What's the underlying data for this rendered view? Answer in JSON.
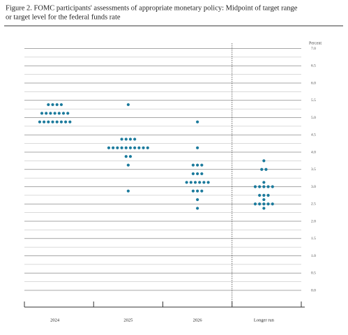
{
  "chart_data": {
    "type": "dot",
    "title": [
      "Figure 2. FOMC participants' assessments of appropriate monetary policy: Midpoint of target range",
      "or target level for the federal funds rate"
    ],
    "y_unit_label": "Percent",
    "categories": [
      "2024",
      "2025",
      "2026",
      "Longer run"
    ],
    "values": [
      [
        5.375,
        5.375,
        5.375,
        5.375,
        5.125,
        5.125,
        5.125,
        5.125,
        5.125,
        5.125,
        5.125,
        4.875,
        4.875,
        4.875,
        4.875,
        4.875,
        4.875,
        4.875,
        4.875
      ],
      [
        5.375,
        4.375,
        4.375,
        4.375,
        4.375,
        4.125,
        4.125,
        4.125,
        4.125,
        4.125,
        4.125,
        4.125,
        4.125,
        4.125,
        4.125,
        3.875,
        3.875,
        3.625,
        2.875
      ],
      [
        4.875,
        4.125,
        3.625,
        3.625,
        3.625,
        3.375,
        3.375,
        3.375,
        3.125,
        3.125,
        3.125,
        3.125,
        3.125,
        3.125,
        2.875,
        2.875,
        2.875,
        2.625,
        2.375
      ],
      [
        3.75,
        3.5,
        3.5,
        3.125,
        3.0,
        3.0,
        3.0,
        3.0,
        3.0,
        2.75,
        2.75,
        2.75,
        2.625,
        2.5,
        2.5,
        2.5,
        2.5,
        2.5,
        2.375
      ]
    ],
    "color": "#1b7a9c",
    "ylim": [
      0,
      7
    ],
    "yticks": [
      {
        "value": 0,
        "label": "0.0"
      },
      {
        "value": 0.5,
        "label": "0.5"
      },
      {
        "value": 1,
        "label": "1.0"
      },
      {
        "value": 1.5,
        "label": "1.5"
      },
      {
        "value": 2,
        "label": "2.0"
      },
      {
        "value": 2.5,
        "label": "2.5"
      },
      {
        "value": 3,
        "label": "3.0"
      },
      {
        "value": 3.5,
        "label": "3.5"
      },
      {
        "value": 4,
        "label": "4.0"
      },
      {
        "value": 4.5,
        "label": "4.5"
      },
      {
        "value": 5,
        "label": "5.0"
      },
      {
        "value": 5.5,
        "label": "5.5"
      },
      {
        "value": 6,
        "label": "6.0"
      },
      {
        "value": 6.5,
        "label": "6.5"
      },
      {
        "value": 7,
        "label": "7.0"
      }
    ],
    "minor_yticks": [
      0.25,
      0.75,
      1.25,
      1.75,
      2.25,
      2.75,
      3.25,
      3.75,
      4.25,
      4.75,
      5.25,
      5.75,
      6.25,
      6.75
    ],
    "grid": true
  }
}
